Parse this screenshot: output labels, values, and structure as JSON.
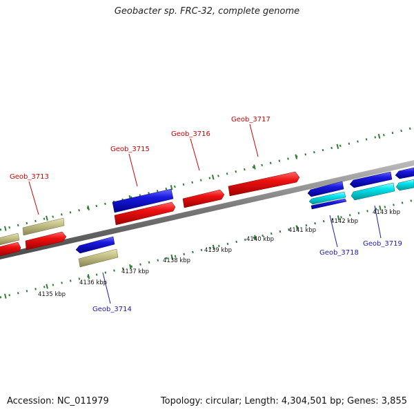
{
  "title": "Geobacter sp. FRC-32, complete genome",
  "footer": {
    "accession": "Accession: NC_011979",
    "topology": "Topology: circular; Length: 4,304,501 bp; Genes: 3,855"
  },
  "colors": {
    "forward_label": "#cc0000",
    "reverse_label": "#1a1ab0",
    "scale_tick": "#2e7d32",
    "backbone": "#777777",
    "gene_red": "#ee1111",
    "gene_blue": "#1a1ae0",
    "gene_cyan": "#00e5ee",
    "gene_khaki": "#c8c48a"
  },
  "scale_labels": [
    "4135 kbp",
    "4136 kbp",
    "4137 kbp",
    "4138 kbp",
    "4139 kbp",
    "4140 kbp",
    "4141 kbp",
    "4142 kbp",
    "4143 kbp"
  ],
  "gene_labels": {
    "forward": [
      "Geob_3713",
      "Geob_3715",
      "Geob_3716",
      "Geob_3717"
    ],
    "reverse": [
      "Geob_3714",
      "Geob_3718",
      "Geob_3719"
    ]
  }
}
